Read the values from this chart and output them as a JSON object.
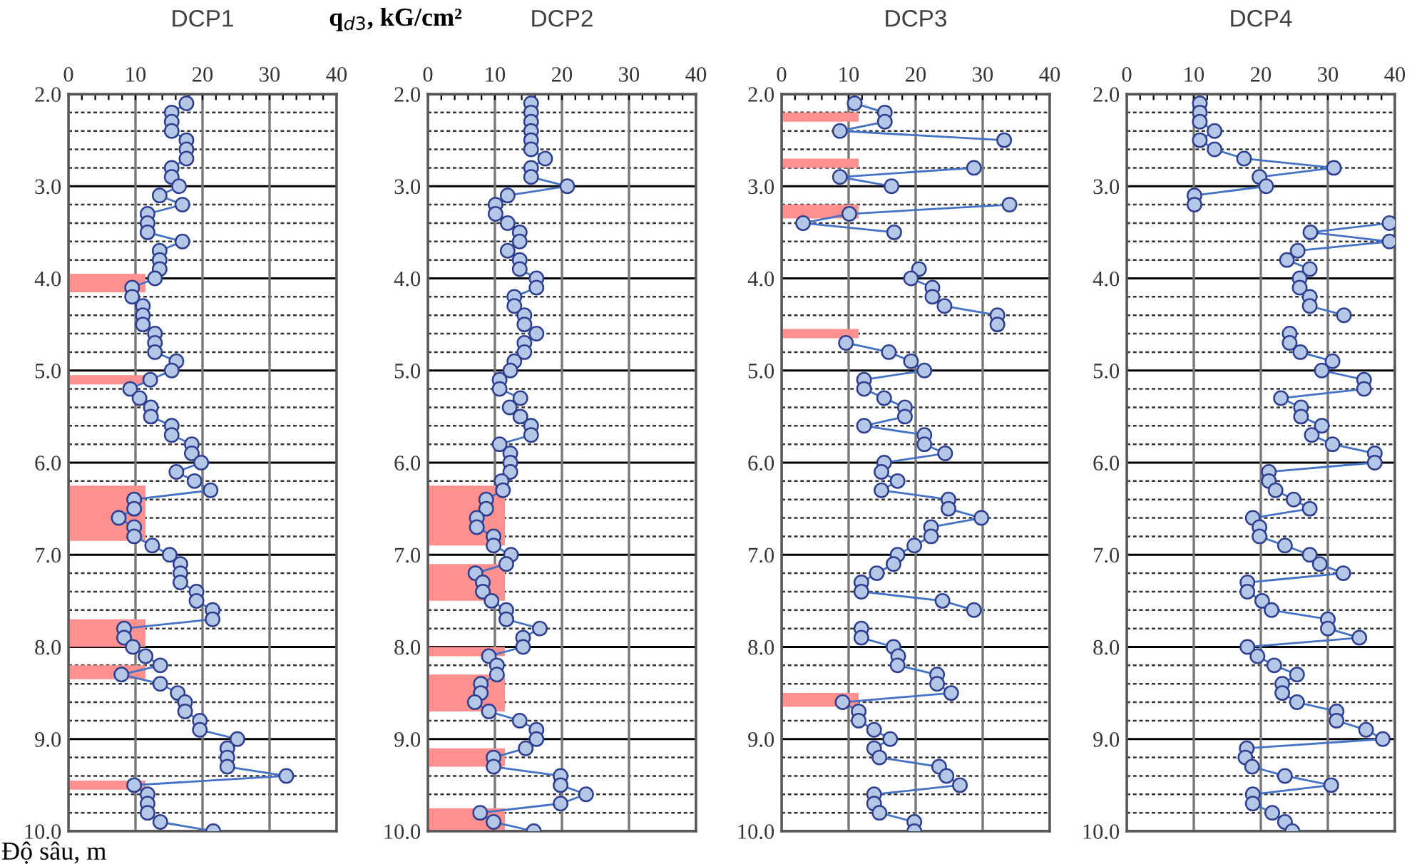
{
  "chart_data": [
    {
      "type": "line",
      "orientation": "horizontal",
      "title": "DCP1",
      "xlabel": "q$_{d3}$, kG/cm²",
      "ylabel": "Độ sâu, m",
      "xlim": [
        0,
        40
      ],
      "ylim": [
        10.0,
        2.0
      ],
      "grid": true,
      "marker": "circle",
      "line_style": "solid",
      "xticks": [
        0,
        {
          "value": 2,
          "label": null
        },
        {
          "value": 4,
          "label": null
        },
        {
          "value": 6,
          "label": null
        },
        {
          "value": 8,
          "label": null
        },
        10,
        {
          "value": 12,
          "label": null
        },
        {
          "value": 14,
          "label": null
        },
        {
          "value": 16,
          "label": null
        },
        {
          "value": 18,
          "label": null
        },
        20,
        {
          "value": 22,
          "label": null
        },
        {
          "value": 24,
          "label": null
        },
        {
          "value": 26,
          "label": null
        },
        {
          "value": 28,
          "label": null
        },
        30,
        {
          "value": 32,
          "label": null
        },
        {
          "value": 34,
          "label": null
        },
        {
          "value": 36,
          "label": null
        },
        {
          "value": 38,
          "label": null
        },
        40
      ],
      "yticks": [
        {
          "value": 2,
          "label": "2.0"
        },
        {
          "value": 2.2,
          "label": null
        },
        {
          "value": 2.4,
          "label": null
        },
        {
          "value": 2.6,
          "label": null
        },
        {
          "value": 2.8,
          "label": null
        },
        {
          "value": 3,
          "label": "3.0"
        },
        {
          "value": 3.2,
          "label": null
        },
        {
          "value": 3.4,
          "label": null
        },
        {
          "value": 3.6,
          "label": null
        },
        {
          "value": 3.8,
          "label": null
        },
        {
          "value": 4,
          "label": "4.0"
        },
        {
          "value": 4.2,
          "label": null
        },
        {
          "value": 4.4,
          "label": null
        },
        {
          "value": 4.6,
          "label": null
        },
        {
          "value": 4.8,
          "label": null
        },
        {
          "value": 5,
          "label": "5.0"
        },
        {
          "value": 5.2,
          "label": null
        },
        {
          "value": 5.4,
          "label": null
        },
        {
          "value": 5.6,
          "label": null
        },
        {
          "value": 5.8,
          "label": null
        },
        {
          "value": 6,
          "label": "6.0"
        },
        {
          "value": 6.2,
          "label": null
        },
        {
          "value": 6.4,
          "label": null
        },
        {
          "value": 6.6,
          "label": null
        },
        {
          "value": 6.8,
          "label": null
        },
        {
          "value": 7,
          "label": "7.0"
        },
        {
          "value": 7.2,
          "label": null
        },
        {
          "value": 7.4,
          "label": null
        },
        {
          "value": 7.6,
          "label": null
        },
        {
          "value": 7.8,
          "label": null
        },
        {
          "value": 8,
          "label": "8.0"
        },
        {
          "value": 8.2,
          "label": null
        },
        {
          "value": 8.4,
          "label": null
        },
        {
          "value": 8.6,
          "label": null
        },
        {
          "value": 8.8,
          "label": null
        },
        {
          "value": 9,
          "label": "9.0"
        },
        {
          "value": 9.2,
          "label": null
        },
        {
          "value": 9.4,
          "label": null
        },
        {
          "value": 9.6,
          "label": null
        },
        {
          "value": 9.8,
          "label": null
        },
        {
          "value": 10,
          "label": "10.0"
        }
      ],
      "bands": [
        {
          "axis": "y",
          "from": 3.95,
          "to": 4.15,
          "color": "#ff9090"
        },
        {
          "axis": "y",
          "from": 5.05,
          "to": 5.15,
          "color": "#ff9090"
        },
        {
          "axis": "y",
          "from": 6.25,
          "to": 6.85,
          "color": "#ff9090"
        },
        {
          "axis": "y",
          "from": 7.7,
          "to": 8.0,
          "color": "#ff9090"
        },
        {
          "axis": "y",
          "from": 8.2,
          "to": 8.35,
          "color": "#ff9090"
        },
        {
          "axis": "y",
          "from": 9.45,
          "to": 9.55,
          "color": "#ff9090"
        }
      ],
      "x": [
        2.1,
        2.2,
        2.3,
        2.4,
        2.5,
        2.6,
        2.7,
        2.8,
        2.9,
        3.0,
        3.1,
        3.2,
        3.3,
        3.4,
        3.5,
        3.6,
        3.7,
        3.8,
        3.9,
        4.0,
        4.1,
        4.2,
        4.3,
        4.4,
        4.5,
        4.6,
        4.7,
        4.8,
        4.9,
        5.0,
        5.1,
        5.2,
        5.3,
        5.4,
        5.5,
        5.6,
        5.7,
        5.8,
        5.9,
        6.0,
        6.1,
        6.2,
        6.3,
        6.4,
        6.5,
        6.6,
        6.7,
        6.8,
        6.9,
        7.0,
        7.1,
        7.2,
        7.3,
        7.4,
        7.5,
        7.6,
        7.7,
        7.8,
        7.9,
        8.0,
        8.1,
        8.2,
        8.3,
        8.4,
        8.5,
        8.6,
        8.7,
        8.8,
        8.9,
        9.0,
        9.1,
        9.2,
        9.3,
        9.4,
        9.5,
        9.6,
        9.7,
        9.8,
        9.9,
        10.0
      ],
      "series": [
        {
          "color": "#4472c4",
          "values": [
            17.6,
            15.4,
            15.4,
            15.4,
            17.6,
            17.6,
            17.6,
            15.4,
            15.4,
            16.5,
            13.6,
            17.0,
            11.8,
            11.8,
            11.8,
            17.0,
            13.6,
            13.6,
            13.6,
            12.9,
            9.5,
            9.5,
            11.1,
            11.1,
            11.1,
            12.9,
            12.9,
            12.9,
            16.1,
            15.4,
            12.2,
            9.2,
            10.6,
            12.3,
            12.3,
            15.4,
            15.4,
            18.4,
            18.4,
            19.8,
            16.1,
            18.8,
            21.2,
            9.8,
            9.8,
            7.5,
            9.8,
            9.8,
            12.5,
            15.1,
            16.7,
            16.7,
            16.7,
            19.1,
            19.1,
            21.5,
            21.5,
            8.3,
            8.3,
            9.6,
            11.5,
            13.7,
            7.9,
            13.7,
            16.3,
            17.4,
            17.4,
            19.6,
            19.6,
            25.2,
            23.7,
            23.7,
            23.7,
            32.5,
            9.8,
            11.8,
            11.8,
            11.8,
            13.7,
            21.6
          ]
        }
      ]
    },
    {
      "type": "line",
      "orientation": "horizontal",
      "title": "DCP2",
      "xlim": [
        0,
        40
      ],
      "ylim": [
        10.0,
        2.0
      ],
      "grid": true,
      "marker": "circle",
      "line_style": "solid",
      "xticks": [
        0,
        {
          "value": 2,
          "label": null
        },
        {
          "value": 4,
          "label": null
        },
        {
          "value": 6,
          "label": null
        },
        {
          "value": 8,
          "label": null
        },
        10,
        {
          "value": 12,
          "label": null
        },
        {
          "value": 14,
          "label": null
        },
        {
          "value": 16,
          "label": null
        },
        {
          "value": 18,
          "label": null
        },
        20,
        {
          "value": 22,
          "label": null
        },
        {
          "value": 24,
          "label": null
        },
        {
          "value": 26,
          "label": null
        },
        {
          "value": 28,
          "label": null
        },
        30,
        {
          "value": 32,
          "label": null
        },
        {
          "value": 34,
          "label": null
        },
        {
          "value": 36,
          "label": null
        },
        {
          "value": 38,
          "label": null
        },
        40
      ],
      "yticks": [
        {
          "value": 2,
          "label": "2.0"
        },
        {
          "value": 2.2,
          "label": null
        },
        {
          "value": 2.4,
          "label": null
        },
        {
          "value": 2.6,
          "label": null
        },
        {
          "value": 2.8,
          "label": null
        },
        {
          "value": 3,
          "label": "3.0"
        },
        {
          "value": 3.2,
          "label": null
        },
        {
          "value": 3.4,
          "label": null
        },
        {
          "value": 3.6,
          "label": null
        },
        {
          "value": 3.8,
          "label": null
        },
        {
          "value": 4,
          "label": "4.0"
        },
        {
          "value": 4.2,
          "label": null
        },
        {
          "value": 4.4,
          "label": null
        },
        {
          "value": 4.6,
          "label": null
        },
        {
          "value": 4.8,
          "label": null
        },
        {
          "value": 5,
          "label": "5.0"
        },
        {
          "value": 5.2,
          "label": null
        },
        {
          "value": 5.4,
          "label": null
        },
        {
          "value": 5.6,
          "label": null
        },
        {
          "value": 5.8,
          "label": null
        },
        {
          "value": 6,
          "label": "6.0"
        },
        {
          "value": 6.2,
          "label": null
        },
        {
          "value": 6.4,
          "label": null
        },
        {
          "value": 6.6,
          "label": null
        },
        {
          "value": 6.8,
          "label": null
        },
        {
          "value": 7,
          "label": "7.0"
        },
        {
          "value": 7.2,
          "label": null
        },
        {
          "value": 7.4,
          "label": null
        },
        {
          "value": 7.6,
          "label": null
        },
        {
          "value": 7.8,
          "label": null
        },
        {
          "value": 8,
          "label": "8.0"
        },
        {
          "value": 8.2,
          "label": null
        },
        {
          "value": 8.4,
          "label": null
        },
        {
          "value": 8.6,
          "label": null
        },
        {
          "value": 8.8,
          "label": null
        },
        {
          "value": 9,
          "label": "9.0"
        },
        {
          "value": 9.2,
          "label": null
        },
        {
          "value": 9.4,
          "label": null
        },
        {
          "value": 9.6,
          "label": null
        },
        {
          "value": 9.8,
          "label": null
        },
        {
          "value": 10,
          "label": "10.0"
        }
      ],
      "bands": [
        {
          "axis": "y",
          "from": 6.25,
          "to": 6.9,
          "color": "#ff9090"
        },
        {
          "axis": "y",
          "from": 7.1,
          "to": 7.5,
          "color": "#ff9090"
        },
        {
          "axis": "y",
          "from": 8.0,
          "to": 8.1,
          "color": "#ff9090"
        },
        {
          "axis": "y",
          "from": 8.3,
          "to": 8.7,
          "color": "#ff9090"
        },
        {
          "axis": "y",
          "from": 9.1,
          "to": 9.3,
          "color": "#ff9090"
        },
        {
          "axis": "y",
          "from": 9.75,
          "to": 10.0,
          "color": "#ff9090"
        }
      ],
      "x": [
        2.1,
        2.2,
        2.3,
        2.4,
        2.5,
        2.6,
        2.7,
        2.8,
        2.9,
        3.0,
        3.1,
        3.2,
        3.3,
        3.4,
        3.5,
        3.6,
        3.7,
        3.8,
        3.9,
        4.0,
        4.1,
        4.2,
        4.3,
        4.4,
        4.5,
        4.6,
        4.7,
        4.8,
        4.9,
        5.0,
        5.1,
        5.2,
        5.3,
        5.4,
        5.5,
        5.6,
        5.7,
        5.8,
        5.9,
        6.0,
        6.1,
        6.2,
        6.3,
        6.4,
        6.5,
        6.6,
        6.7,
        6.8,
        6.9,
        7.0,
        7.1,
        7.2,
        7.3,
        7.4,
        7.5,
        7.6,
        7.7,
        7.8,
        7.9,
        8.0,
        8.1,
        8.2,
        8.3,
        8.4,
        8.5,
        8.6,
        8.7,
        8.8,
        8.9,
        9.0,
        9.1,
        9.2,
        9.3,
        9.4,
        9.5,
        9.6,
        9.7,
        9.8,
        9.9,
        10.0
      ],
      "series": [
        {
          "color": "#4472c4",
          "values": [
            15.4,
            15.4,
            15.4,
            15.4,
            15.4,
            15.4,
            17.5,
            15.4,
            15.4,
            20.8,
            11.9,
            10.1,
            10.1,
            11.9,
            13.7,
            13.7,
            11.9,
            13.7,
            13.7,
            16.2,
            16.2,
            12.9,
            12.9,
            14.4,
            14.4,
            16.2,
            14.4,
            14.4,
            12.9,
            12.3,
            10.7,
            10.7,
            13.8,
            12.2,
            13.8,
            15.4,
            15.4,
            10.7,
            12.3,
            12.3,
            12.3,
            11.0,
            11.2,
            8.7,
            8.7,
            7.3,
            7.3,
            9.8,
            9.8,
            12.4,
            11.7,
            7.1,
            8.2,
            8.2,
            9.5,
            11.7,
            11.7,
            16.7,
            14.2,
            14.2,
            9.1,
            10.3,
            10.3,
            7.9,
            7.9,
            7.0,
            9.1,
            13.7,
            16.2,
            16.2,
            14.6,
            9.8,
            9.8,
            19.8,
            19.8,
            23.6,
            19.8,
            7.8,
            9.8,
            15.8
          ]
        }
      ]
    },
    {
      "type": "line",
      "orientation": "horizontal",
      "title": "DCP3",
      "xlim": [
        0,
        40
      ],
      "ylim": [
        10.0,
        2.0
      ],
      "grid": true,
      "marker": "circle",
      "line_style": "solid",
      "xticks": [
        0,
        {
          "value": 2,
          "label": null
        },
        {
          "value": 4,
          "label": null
        },
        {
          "value": 6,
          "label": null
        },
        {
          "value": 8,
          "label": null
        },
        10,
        {
          "value": 12,
          "label": null
        },
        {
          "value": 14,
          "label": null
        },
        {
          "value": 16,
          "label": null
        },
        {
          "value": 18,
          "label": null
        },
        20,
        {
          "value": 22,
          "label": null
        },
        {
          "value": 24,
          "label": null
        },
        {
          "value": 26,
          "label": null
        },
        {
          "value": 28,
          "label": null
        },
        30,
        {
          "value": 32,
          "label": null
        },
        {
          "value": 34,
          "label": null
        },
        {
          "value": 36,
          "label": null
        },
        {
          "value": 38,
          "label": null
        },
        40
      ],
      "yticks": [
        {
          "value": 2,
          "label": "2.0"
        },
        {
          "value": 2.2,
          "label": null
        },
        {
          "value": 2.4,
          "label": null
        },
        {
          "value": 2.6,
          "label": null
        },
        {
          "value": 2.8,
          "label": null
        },
        {
          "value": 3,
          "label": "3.0"
        },
        {
          "value": 3.2,
          "label": null
        },
        {
          "value": 3.4,
          "label": null
        },
        {
          "value": 3.6,
          "label": null
        },
        {
          "value": 3.8,
          "label": null
        },
        {
          "value": 4,
          "label": "4.0"
        },
        {
          "value": 4.2,
          "label": null
        },
        {
          "value": 4.4,
          "label": null
        },
        {
          "value": 4.6,
          "label": null
        },
        {
          "value": 4.8,
          "label": null
        },
        {
          "value": 5,
          "label": "5.0"
        },
        {
          "value": 5.2,
          "label": null
        },
        {
          "value": 5.4,
          "label": null
        },
        {
          "value": 5.6,
          "label": null
        },
        {
          "value": 5.8,
          "label": null
        },
        {
          "value": 6,
          "label": "6.0"
        },
        {
          "value": 6.2,
          "label": null
        },
        {
          "value": 6.4,
          "label": null
        },
        {
          "value": 6.6,
          "label": null
        },
        {
          "value": 6.8,
          "label": null
        },
        {
          "value": 7,
          "label": "7.0"
        },
        {
          "value": 7.2,
          "label": null
        },
        {
          "value": 7.4,
          "label": null
        },
        {
          "value": 7.6,
          "label": null
        },
        {
          "value": 7.8,
          "label": null
        },
        {
          "value": 8,
          "label": "8.0"
        },
        {
          "value": 8.2,
          "label": null
        },
        {
          "value": 8.4,
          "label": null
        },
        {
          "value": 8.6,
          "label": null
        },
        {
          "value": 8.8,
          "label": null
        },
        {
          "value": 9,
          "label": "9.0"
        },
        {
          "value": 9.2,
          "label": null
        },
        {
          "value": 9.4,
          "label": null
        },
        {
          "value": 9.6,
          "label": null
        },
        {
          "value": 9.8,
          "label": null
        },
        {
          "value": 10,
          "label": "10.0"
        }
      ],
      "bands": [
        {
          "axis": "y",
          "from": 2.2,
          "to": 2.3,
          "color": "#ff9090"
        },
        {
          "axis": "y",
          "from": 2.7,
          "to": 2.8,
          "color": "#ff9090"
        },
        {
          "axis": "y",
          "from": 3.2,
          "to": 3.35,
          "color": "#ff9090"
        },
        {
          "axis": "y",
          "from": 4.55,
          "to": 4.65,
          "color": "#ff9090"
        },
        {
          "axis": "y",
          "from": 8.5,
          "to": 8.65,
          "color": "#ff9090"
        }
      ],
      "x": [
        2.1,
        2.2,
        2.3,
        2.4,
        2.5,
        2.6,
        2.7,
        2.8,
        2.9,
        3.0,
        3.1,
        3.2,
        3.3,
        3.4,
        3.5,
        3.6,
        3.7,
        3.8,
        3.9,
        4.0,
        4.1,
        4.2,
        4.3,
        4.4,
        4.5,
        4.6,
        4.7,
        4.8,
        4.9,
        5.0,
        5.1,
        5.2,
        5.3,
        5.4,
        5.5,
        5.6,
        5.7,
        5.8,
        5.9,
        6.0,
        6.1,
        6.2,
        6.3,
        6.4,
        6.5,
        6.6,
        6.7,
        6.8,
        6.9,
        7.0,
        7.1,
        7.2,
        7.3,
        7.4,
        7.5,
        7.6,
        7.7,
        7.8,
        7.9,
        8.0,
        8.1,
        8.2,
        8.3,
        8.4,
        8.5,
        8.6,
        8.7,
        8.8,
        8.9,
        9.0,
        9.1,
        9.2,
        9.3,
        9.4,
        9.5,
        9.6,
        9.7,
        9.8,
        9.9,
        10.0
      ],
      "series": [
        {
          "color": "#4472c4",
          "values": [
            10.9,
            15.4,
            15.4,
            8.7,
            33.2,
            null,
            null,
            28.7,
            8.7,
            16.4,
            null,
            34.0,
            10.1,
            3.2,
            16.8,
            null,
            null,
            null,
            20.5,
            19.3,
            22.5,
            22.5,
            24.3,
            32.2,
            32.2,
            null,
            9.6,
            16.0,
            19.3,
            21.3,
            12.3,
            12.3,
            15.3,
            18.4,
            18.4,
            12.3,
            21.3,
            21.3,
            24.4,
            15.3,
            14.9,
            17.3,
            14.9,
            24.9,
            24.9,
            29.8,
            22.3,
            22.3,
            19.8,
            17.3,
            16.7,
            14.2,
            11.9,
            11.9,
            24.0,
            28.7,
            null,
            11.9,
            11.9,
            16.7,
            17.4,
            17.3,
            23.2,
            23.2,
            25.3,
            9.1,
            11.5,
            11.5,
            13.8,
            16.2,
            13.8,
            14.6,
            23.5,
            24.6,
            26.6,
            13.8,
            13.8,
            14.6,
            19.8,
            19.8
          ]
        }
      ]
    },
    {
      "type": "line",
      "orientation": "horizontal",
      "title": "DCP4",
      "xlim": [
        0,
        40
      ],
      "ylim": [
        10.0,
        2.0
      ],
      "grid": true,
      "marker": "circle",
      "line_style": "solid",
      "xticks": [
        0,
        {
          "value": 2,
          "label": null
        },
        {
          "value": 4,
          "label": null
        },
        {
          "value": 6,
          "label": null
        },
        {
          "value": 8,
          "label": null
        },
        10,
        {
          "value": 12,
          "label": null
        },
        {
          "value": 14,
          "label": null
        },
        {
          "value": 16,
          "label": null
        },
        {
          "value": 18,
          "label": null
        },
        20,
        {
          "value": 22,
          "label": null
        },
        {
          "value": 24,
          "label": null
        },
        {
          "value": 26,
          "label": null
        },
        {
          "value": 28,
          "label": null
        },
        30,
        {
          "value": 32,
          "label": null
        },
        {
          "value": 34,
          "label": null
        },
        {
          "value": 36,
          "label": null
        },
        {
          "value": 38,
          "label": null
        },
        40
      ],
      "yticks": [
        {
          "value": 2,
          "label": "2.0"
        },
        {
          "value": 2.2,
          "label": null
        },
        {
          "value": 2.4,
          "label": null
        },
        {
          "value": 2.6,
          "label": null
        },
        {
          "value": 2.8,
          "label": null
        },
        {
          "value": 3,
          "label": "3.0"
        },
        {
          "value": 3.2,
          "label": null
        },
        {
          "value": 3.4,
          "label": null
        },
        {
          "value": 3.6,
          "label": null
        },
        {
          "value": 3.8,
          "label": null
        },
        {
          "value": 4,
          "label": "4.0"
        },
        {
          "value": 4.2,
          "label": null
        },
        {
          "value": 4.4,
          "label": null
        },
        {
          "value": 4.6,
          "label": null
        },
        {
          "value": 4.8,
          "label": null
        },
        {
          "value": 5,
          "label": "5.0"
        },
        {
          "value": 5.2,
          "label": null
        },
        {
          "value": 5.4,
          "label": null
        },
        {
          "value": 5.6,
          "label": null
        },
        {
          "value": 5.8,
          "label": null
        },
        {
          "value": 6,
          "label": "6.0"
        },
        {
          "value": 6.2,
          "label": null
        },
        {
          "value": 6.4,
          "label": null
        },
        {
          "value": 6.6,
          "label": null
        },
        {
          "value": 6.8,
          "label": null
        },
        {
          "value": 7,
          "label": "7.0"
        },
        {
          "value": 7.2,
          "label": null
        },
        {
          "value": 7.4,
          "label": null
        },
        {
          "value": 7.6,
          "label": null
        },
        {
          "value": 7.8,
          "label": null
        },
        {
          "value": 8,
          "label": "8.0"
        },
        {
          "value": 8.2,
          "label": null
        },
        {
          "value": 8.4,
          "label": null
        },
        {
          "value": 8.6,
          "label": null
        },
        {
          "value": 8.8,
          "label": null
        },
        {
          "value": 9,
          "label": "9.0"
        },
        {
          "value": 9.2,
          "label": null
        },
        {
          "value": 9.4,
          "label": null
        },
        {
          "value": 9.6,
          "label": null
        },
        {
          "value": 9.8,
          "label": null
        },
        {
          "value": 10,
          "label": "10.0"
        }
      ],
      "x": [
        2.1,
        2.2,
        2.3,
        2.4,
        2.5,
        2.6,
        2.7,
        2.8,
        2.9,
        3.0,
        3.1,
        3.2,
        3.3,
        3.4,
        3.5,
        3.6,
        3.7,
        3.8,
        3.9,
        4.0,
        4.1,
        4.2,
        4.3,
        4.4,
        4.5,
        4.6,
        4.7,
        4.8,
        4.9,
        5.0,
        5.1,
        5.2,
        5.3,
        5.4,
        5.5,
        5.6,
        5.7,
        5.8,
        5.9,
        6.0,
        6.1,
        6.2,
        6.3,
        6.4,
        6.5,
        6.6,
        6.7,
        6.8,
        6.9,
        7.0,
        7.1,
        7.2,
        7.3,
        7.4,
        7.5,
        7.6,
        7.7,
        7.8,
        7.9,
        8.0,
        8.1,
        8.2,
        8.3,
        8.4,
        8.5,
        8.6,
        8.7,
        8.8,
        8.9,
        9.0,
        9.1,
        9.2,
        9.3,
        9.4,
        9.5,
        9.6,
        9.7,
        9.8,
        9.9,
        10.0
      ],
      "series": [
        {
          "color": "#4472c4",
          "values": [
            10.9,
            10.9,
            10.9,
            13.1,
            10.9,
            13.1,
            17.5,
            30.9,
            19.8,
            20.8,
            10.1,
            10.1,
            null,
            39.2,
            27.4,
            39.2,
            25.5,
            23.9,
            27.3,
            25.8,
            25.8,
            27.3,
            27.3,
            32.4,
            null,
            24.3,
            24.3,
            25.9,
            30.7,
            29.1,
            35.4,
            35.4,
            23.0,
            26.0,
            26.0,
            29.1,
            27.6,
            30.7,
            37.0,
            37.0,
            21.2,
            21.2,
            22.2,
            24.9,
            27.3,
            18.8,
            19.8,
            19.8,
            23.6,
            27.3,
            28.8,
            32.3,
            18.0,
            18.0,
            20.2,
            21.6,
            30.0,
            30.0,
            34.7,
            18.0,
            19.5,
            22.0,
            25.4,
            23.2,
            23.2,
            25.4,
            31.3,
            31.3,
            35.7,
            38.2,
            17.9,
            17.7,
            18.7,
            23.6,
            30.5,
            18.8,
            18.8,
            21.7,
            23.6,
            24.7
          ]
        }
      ]
    }
  ]
}
